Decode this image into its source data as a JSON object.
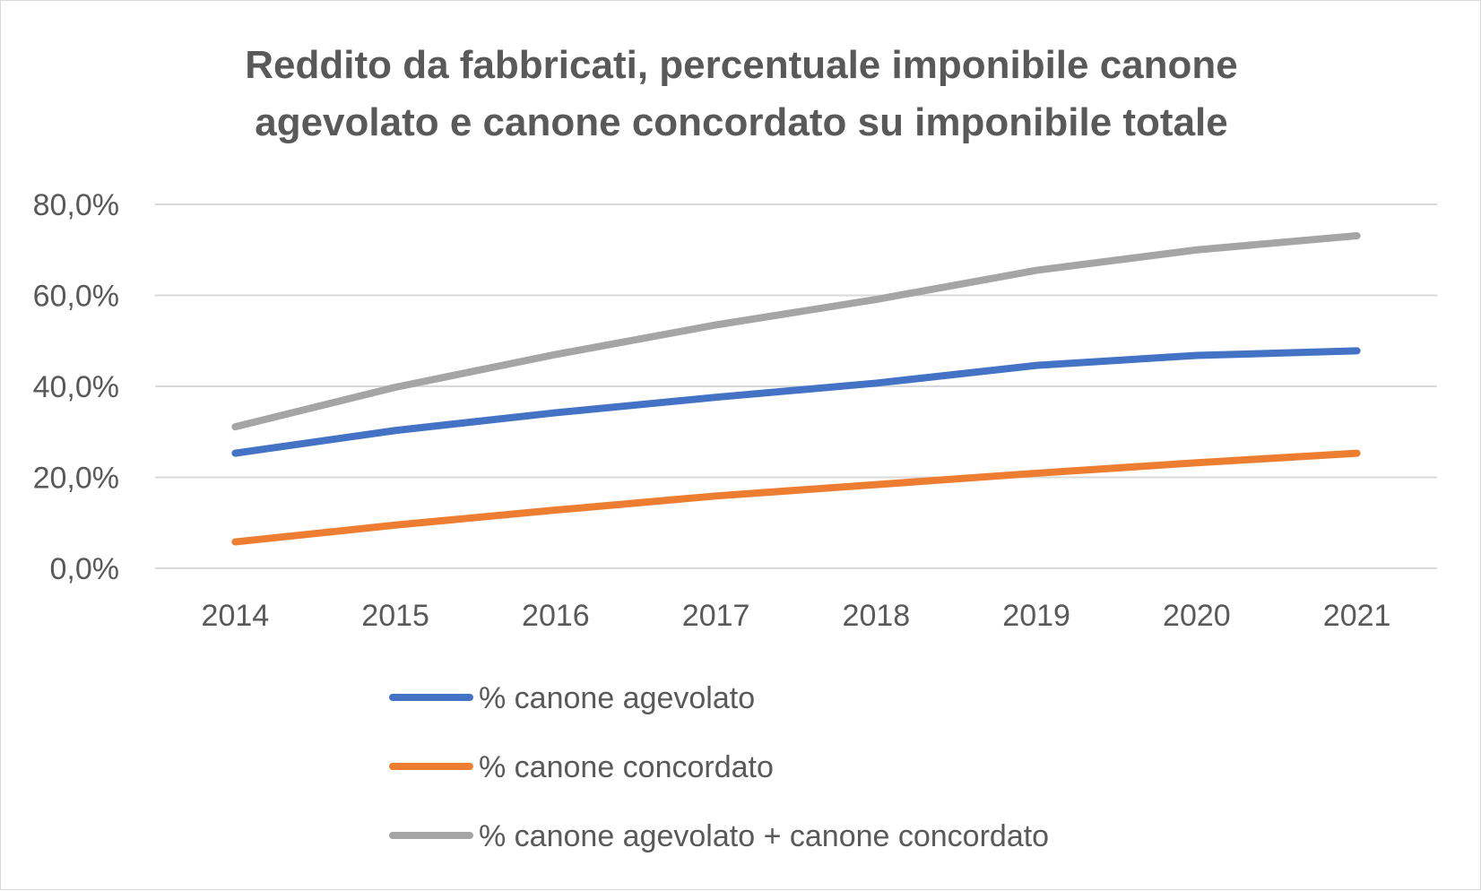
{
  "chart_data": {
    "type": "line",
    "title_line1": "Reddito da fabbricati, percentuale imponibile canone",
    "title_line2": "agevolato e canone concordato su imponibile totale",
    "categories": [
      "2014",
      "2015",
      "2016",
      "2017",
      "2018",
      "2019",
      "2020",
      "2021"
    ],
    "ylim": [
      0,
      80
    ],
    "yticks": [
      0,
      20,
      40,
      60,
      80
    ],
    "ytick_labels": [
      "0,0%",
      "20,0%",
      "40,0%",
      "60,0%",
      "80,0%"
    ],
    "grid": true,
    "legend_position": "bottom",
    "series": [
      {
        "name": "% canone agevolato",
        "color": "#4472C4",
        "values": [
          25.3,
          30.3,
          34.2,
          37.6,
          40.7,
          44.6,
          46.8,
          47.8
        ]
      },
      {
        "name": "% canone concordato",
        "color": "#ED7D31",
        "values": [
          5.8,
          9.5,
          12.8,
          15.9,
          18.4,
          20.9,
          23.2,
          25.3
        ]
      },
      {
        "name": "% canone agevolato + canone concordato",
        "color": "#A5A5A5",
        "values": [
          31.1,
          39.8,
          47.0,
          53.5,
          59.1,
          65.5,
          70.0,
          73.1
        ]
      }
    ]
  }
}
